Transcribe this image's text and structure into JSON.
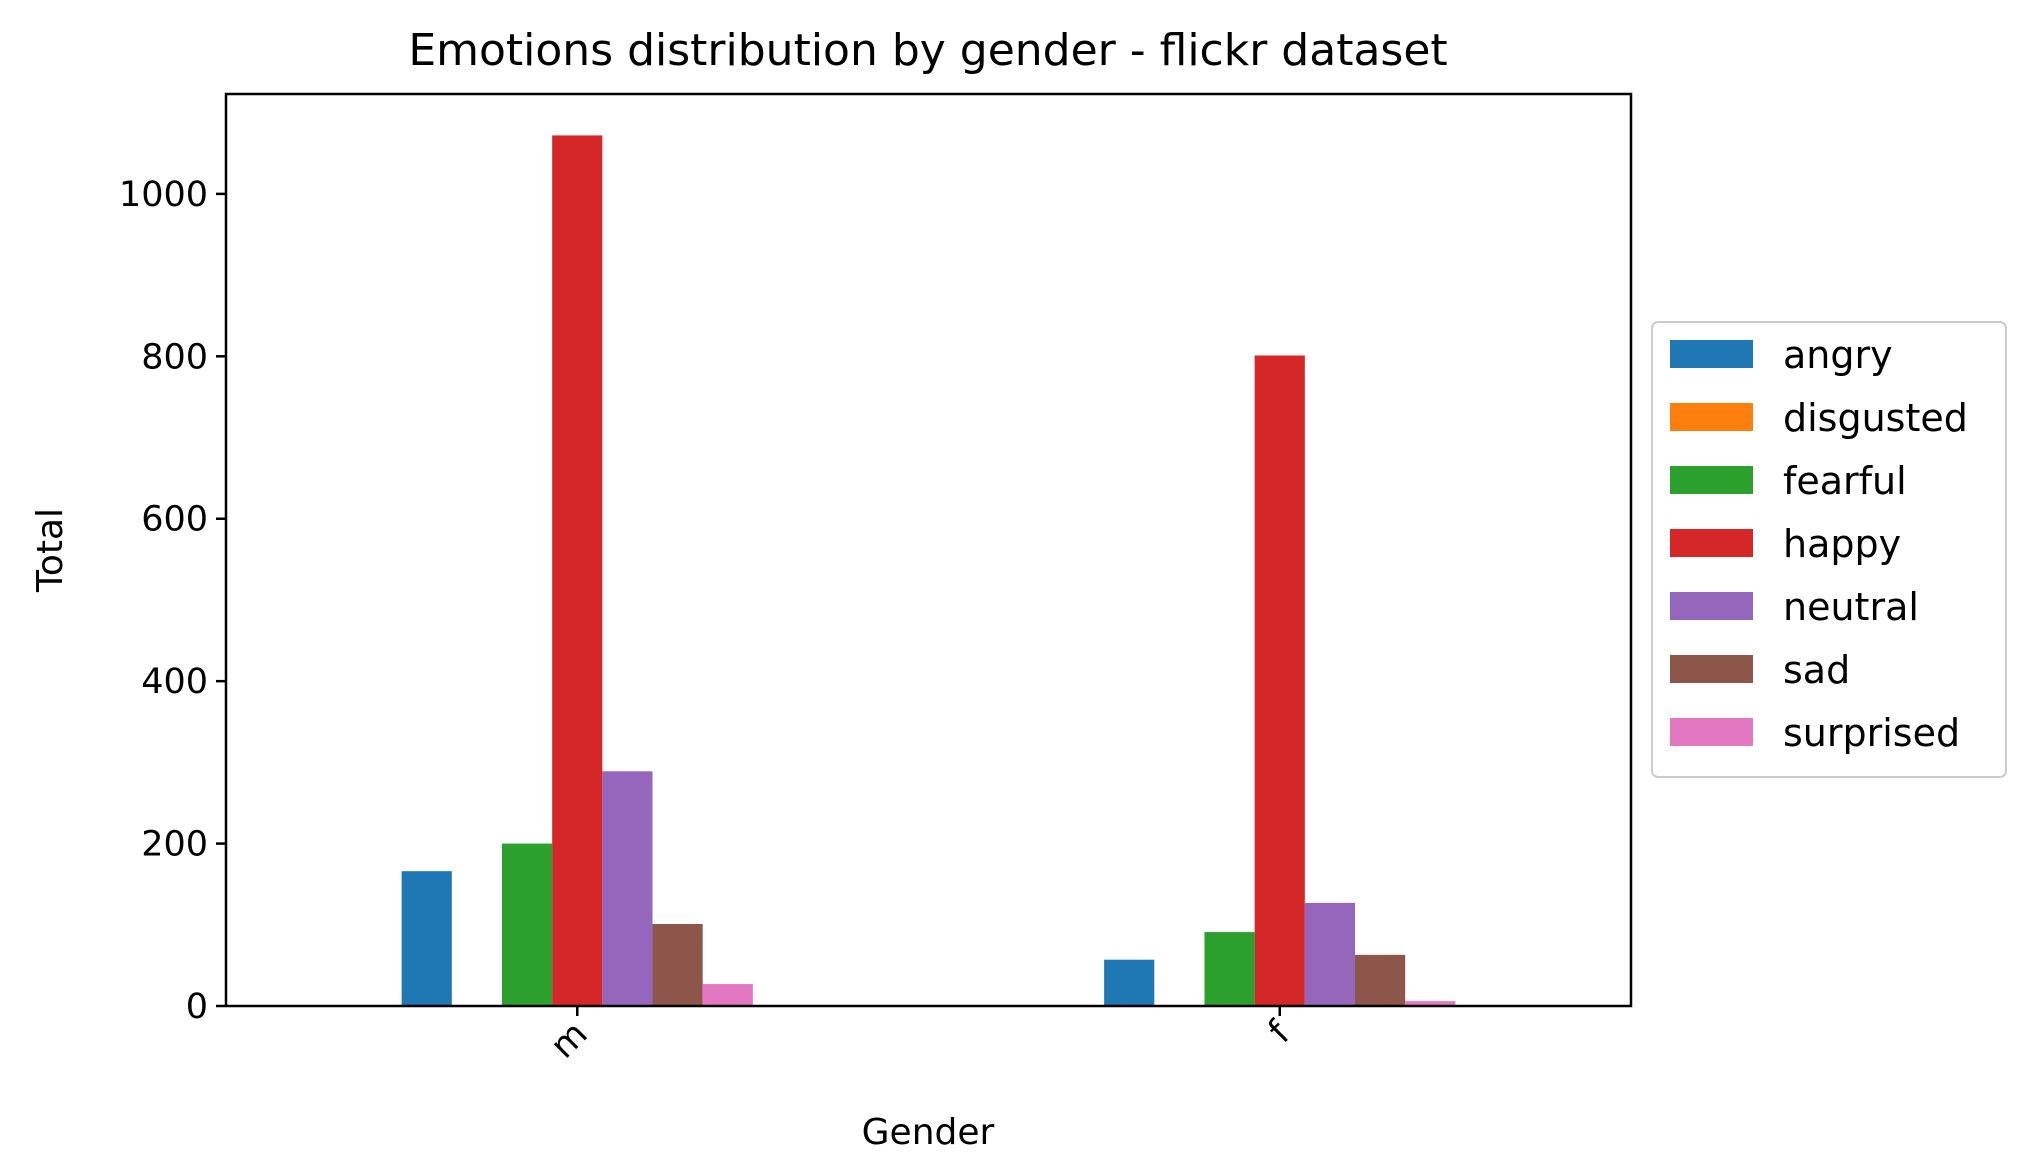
{
  "chart_data": {
    "type": "bar",
    "title": "Emotions distribution by gender - flickr dataset",
    "xlabel": "Gender",
    "ylabel": "Total",
    "categories": [
      "m",
      "f"
    ],
    "ylim": [
      0,
      1123
    ],
    "yticks": [
      0,
      200,
      400,
      600,
      800,
      1000
    ],
    "grid": false,
    "legend_position": "center-right (outside plot)",
    "series": [
      {
        "name": "angry",
        "color": "#1f77b4",
        "values": [
          166,
          57
        ]
      },
      {
        "name": "disgusted",
        "color": "#ff7f0e",
        "values": [
          0,
          0
        ]
      },
      {
        "name": "fearful",
        "color": "#2ca02c",
        "values": [
          200,
          91
        ]
      },
      {
        "name": "happy",
        "color": "#d62728",
        "values": [
          1072,
          801
        ]
      },
      {
        "name": "neutral",
        "color": "#9467bd",
        "values": [
          289,
          127
        ]
      },
      {
        "name": "sad",
        "color": "#8c564b",
        "values": [
          101,
          63
        ]
      },
      {
        "name": "surprised",
        "color": "#e377c2",
        "values": [
          27,
          6
        ]
      }
    ]
  }
}
